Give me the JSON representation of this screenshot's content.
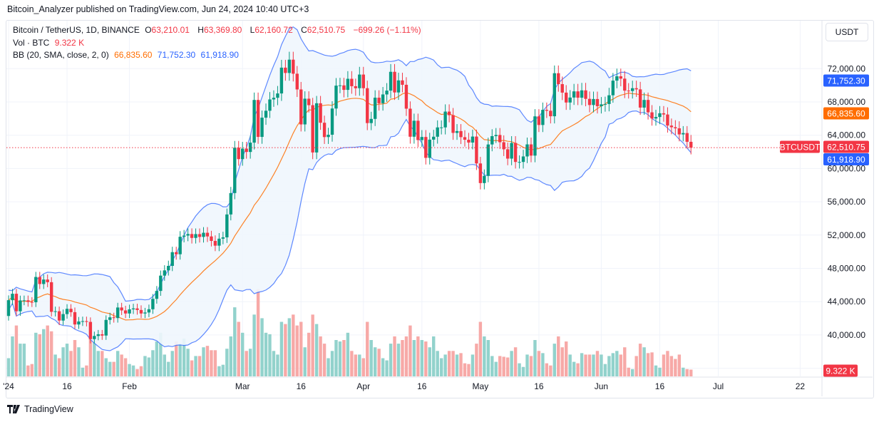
{
  "header": {
    "published": "Bitcoin_Analyzer published on TradingView.com, Jun 24, 2024 10:40 UTC+3"
  },
  "legend": {
    "symbol": "Bitcoin / TetherUS, 1D, BINANCE",
    "o_label": "O",
    "o": "63,210.01",
    "h_label": "H",
    "h": "63,369.80",
    "l_label": "L",
    "l": "62,160.72",
    "c_label": "C",
    "c": "62,510.75",
    "change": "−699.26 (−1.11%)",
    "vol_label": "Vol · BTC",
    "vol": "9.322 K",
    "bb_label": "BB (20, SMA, close, 2, 0)",
    "bb_basis": "66,835.60",
    "bb_upper": "71,752.30",
    "bb_lower": "61,918.90"
  },
  "currency_button": "USDT",
  "footer": {
    "brand": "TradingView"
  },
  "chart_data": {
    "type": "candlestick",
    "symbol": "BTCUSDT",
    "interval": "1D",
    "colors": {
      "up": "#089981",
      "down": "#f23645",
      "vol_up": "#92d2cc",
      "vol_down": "#f7a9a7",
      "bb_band": "#2962ff",
      "bb_basis": "#ff6d00",
      "bb_fill": "#f0f6fd"
    },
    "ylim": [
      36000,
      74000
    ],
    "y_ticks": [
      "40,000.00",
      "44,000.00",
      "48,000.00",
      "52,000.00",
      "56,000.00",
      "60,000.00",
      "64,000.00",
      "68,000.00",
      "72,000.00"
    ],
    "y_tick_values": [
      40000,
      44000,
      48000,
      52000,
      56000,
      60000,
      64000,
      68000,
      72000
    ],
    "x_ticks": [
      {
        "label": "'24",
        "date": "2024-01-01"
      },
      {
        "label": "16",
        "date": "2024-01-16"
      },
      {
        "label": "Feb",
        "date": "2024-02-01"
      },
      {
        "label": "Mar",
        "date": "2024-03-01"
      },
      {
        "label": "16",
        "date": "2024-03-16"
      },
      {
        "label": "Apr",
        "date": "2024-04-01"
      },
      {
        "label": "16",
        "date": "2024-04-16"
      },
      {
        "label": "May",
        "date": "2024-05-01"
      },
      {
        "label": "16",
        "date": "2024-05-16"
      },
      {
        "label": "Jun",
        "date": "2024-06-01"
      },
      {
        "label": "16",
        "date": "2024-06-16"
      },
      {
        "label": "Jul",
        "date": "2024-07-01"
      },
      {
        "label": "22",
        "date": "2024-07-22"
      }
    ],
    "first_open": 42280,
    "closes": {
      "2024-01": [
        44180,
        44950,
        42850,
        44150,
        44160,
        43970,
        43930,
        46970,
        46120,
        46660,
        46340,
        42780,
        42850,
        41730,
        42510,
        43140,
        42740,
        41260,
        41620,
        41660,
        41570,
        39500,
        39880,
        40080,
        39930,
        41810,
        42120,
        42030,
        43300,
        42950,
        42580
      ],
      "2024-02": [
        43080,
        43190,
        43000,
        42580,
        42700,
        43090,
        44340,
        45290,
        47130,
        47760,
        48300,
        49950,
        49700,
        51800,
        51940,
        52130,
        51660,
        52120,
        51780,
        52280,
        51840,
        51300,
        50730,
        51570,
        51730,
        54480,
        57050,
        62500,
        61130
      ],
      "2024-03": [
        62390,
        61990,
        63110,
        68240,
        63800,
        66110,
        66940,
        68300,
        68500,
        69020,
        72120,
        71480,
        73080,
        71390,
        69500,
        65300,
        68390,
        67610,
        61930,
        67840,
        65500,
        63780,
        64060,
        67210,
        69960,
        69990,
        69450,
        70780,
        69890,
        69650,
        71290
      ],
      "2024-04": [
        69650,
        65460,
        65960,
        68510,
        67840,
        68900,
        69360,
        71620,
        69140,
        70590,
        70060,
        67190,
        63820,
        65740,
        63420,
        63790,
        61280,
        63470,
        63820,
        64940,
        64940,
        66840,
        66410,
        64280,
        64500,
        63770,
        63460,
        63120,
        63840,
        60610
      ],
      "2024-05": [
        58250,
        59120,
        62890,
        63890,
        64030,
        63160,
        62310,
        61190,
        63070,
        60790,
        60790,
        61450,
        62900,
        61550,
        66270,
        65230,
        67050,
        66940,
        66280,
        71450,
        70140,
        69120,
        67930,
        68530,
        69270,
        68510,
        69390,
        68370,
        67630,
        68350,
        67490
      ],
      "2024-06": [
        67710,
        67750,
        68800,
        70560,
        71080,
        70800,
        69360,
        69310,
        69650,
        69510,
        67320,
        68240,
        66750,
        66010,
        66190,
        66640,
        66490,
        65160,
        64960,
        64830,
        64100,
        64260,
        63210,
        62510.75
      ]
    },
    "volumes_k": {
      "2024-01": [
        25,
        55,
        70,
        45,
        45,
        15,
        17,
        60,
        58,
        65,
        70,
        62,
        30,
        25,
        40,
        45,
        35,
        50,
        40,
        12,
        15,
        55,
        55,
        35,
        35,
        25,
        20,
        20,
        35,
        30,
        25
      ],
      "2024-02": [
        17,
        15,
        10,
        14,
        28,
        26,
        36,
        48,
        60,
        30,
        20,
        35,
        48,
        45,
        52,
        38,
        22,
        28,
        28,
        40,
        42,
        36,
        36,
        14,
        16,
        38,
        55,
        95,
        75
      ],
      "2024-03": [
        60,
        35,
        38,
        85,
        120,
        80,
        60,
        58,
        35,
        30,
        75,
        72,
        80,
        85,
        70,
        75,
        40,
        60,
        85,
        72,
        55,
        45,
        25,
        35,
        50,
        48,
        50,
        60,
        35,
        30,
        30
      ],
      "2024-04": [
        25,
        75,
        50,
        40,
        38,
        25,
        22,
        45,
        55,
        45,
        50,
        55,
        70,
        50,
        55,
        50,
        48,
        40,
        55,
        35,
        25,
        30,
        35,
        35,
        30,
        32,
        18,
        17,
        30,
        45
      ],
      "2024-05": [
        75,
        55,
        50,
        28,
        20,
        28,
        27,
        26,
        35,
        40,
        18,
        13,
        30,
        28,
        50,
        35,
        32,
        18,
        15,
        45,
        55,
        40,
        48,
        30,
        20,
        18,
        32,
        30,
        30,
        30,
        35
      ],
      "2024-06": [
        30,
        17,
        28,
        32,
        35,
        30,
        40,
        12,
        10,
        28,
        45,
        40,
        32,
        33,
        15,
        12,
        30,
        35,
        28,
        24,
        30,
        12,
        10,
        9.322
      ]
    },
    "bollinger": {
      "period": 20,
      "stddev": 2,
      "last_basis": "66,835.60",
      "last_upper": "71,752.30",
      "last_lower": "61,918.90"
    },
    "last_price_label": "62,510.75",
    "last_volume_label": "9.322 K",
    "symbol_tag": "BTCUSDT"
  }
}
